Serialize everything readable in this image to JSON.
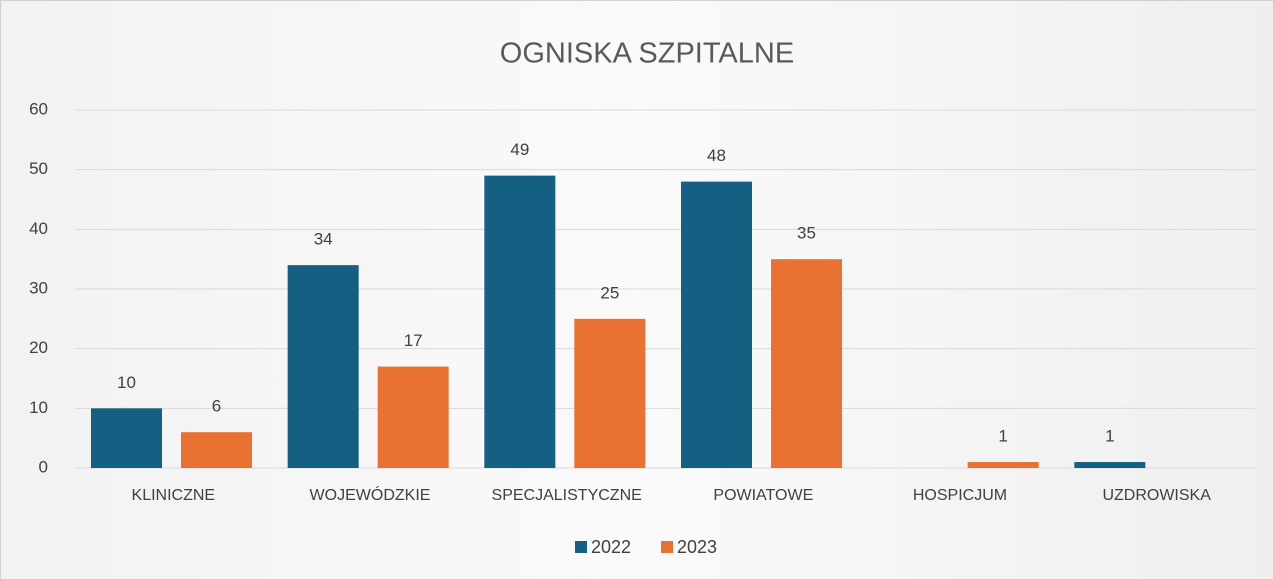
{
  "chart_data": {
    "type": "bar",
    "title": "OGNISKA SZPITALNE",
    "categories": [
      "KLINICZNE",
      "WOJEWÓDZKIE",
      "SPECJALISTYCZNE",
      "POWIATOWE",
      "HOSPICJUM",
      "UZDROWISKA"
    ],
    "series": [
      {
        "name": "2022",
        "color": "#156082",
        "values": [
          10,
          34,
          49,
          48,
          null,
          1
        ]
      },
      {
        "name": "2023",
        "color": "#e97132",
        "values": [
          6,
          17,
          25,
          35,
          1,
          null
        ]
      }
    ],
    "ylim": [
      0,
      60
    ],
    "yticks": [
      0,
      10,
      20,
      30,
      40,
      50,
      60
    ],
    "grid": true,
    "legend": "bottom"
  }
}
